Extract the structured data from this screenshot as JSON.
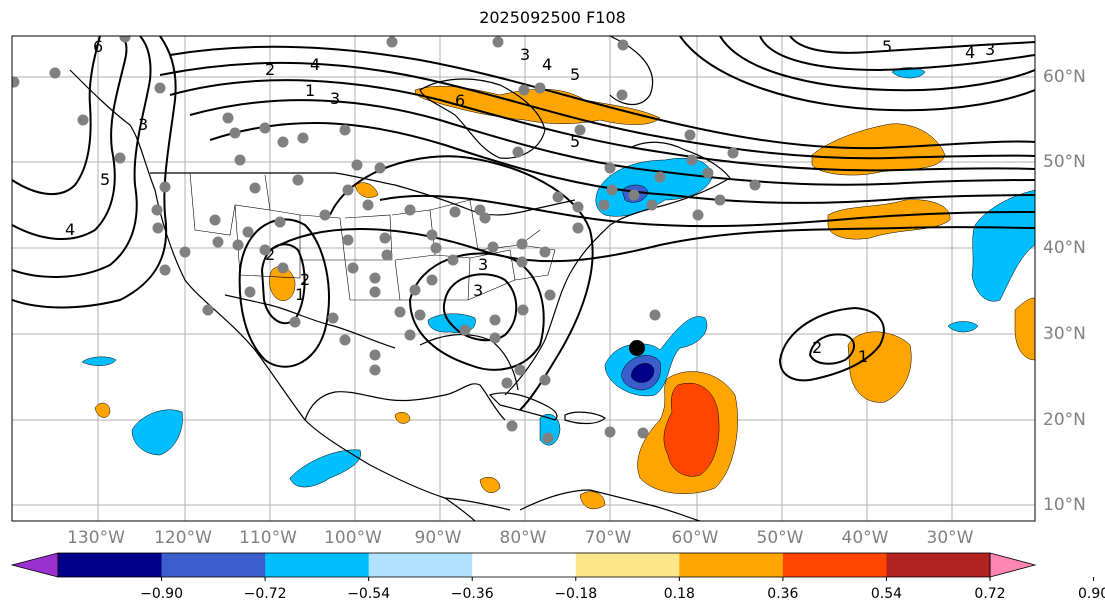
{
  "title": "2025092500 F108",
  "lon_labels": [
    "130°W",
    "120°W",
    "110°W",
    "100°W",
    "90°W",
    "80°W",
    "70°W",
    "60°W",
    "50°W",
    "40°W",
    "30°W"
  ],
  "lat_labels": [
    "60°N",
    "50°N",
    "40°N",
    "30°N",
    "20°N",
    "10°N"
  ],
  "colorbar": {
    "ticks": [
      "−0.90",
      "−0.72",
      "−0.54",
      "−0.36",
      "−0.18",
      "0.18",
      "0.36",
      "0.54",
      "0.72",
      "0.90"
    ],
    "colors": [
      "#9b30d0",
      "#00008b",
      "#3a5fcd",
      "#00bfff",
      "#b0e2ff",
      "#ffffff",
      "#fde68a",
      "#ffa500",
      "#ff4500",
      "#b22222",
      "#ff85b3"
    ]
  },
  "contour_labels": [
    "6",
    "5",
    "4",
    "3",
    "2",
    "1",
    "5",
    "4",
    "3",
    "6",
    "5",
    "4",
    "3",
    "5",
    "4",
    "3",
    "2",
    "1",
    "2",
    "3",
    "3",
    "2",
    "1"
  ],
  "marked_point": "storm-center",
  "fill_colors": {
    "orange": "#ffa500",
    "red": "#ff4500",
    "blue": "#00bfff",
    "darkblue": "#3a5fcd",
    "navy": "#00008b"
  }
}
